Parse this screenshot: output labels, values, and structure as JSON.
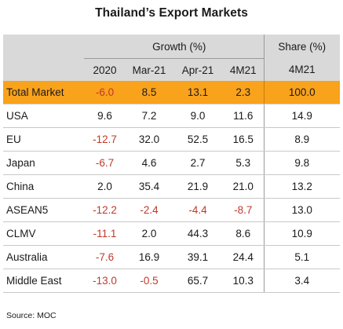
{
  "title": "Thailand’s Export Markets",
  "header": {
    "growth_group": "Growth (%)",
    "share_group": "Share (%)",
    "columns": [
      "2020",
      "Mar-21",
      "Apr-21",
      "4M21"
    ],
    "share_column": "4M21"
  },
  "rows": [
    {
      "label": "Total Market",
      "values": [
        "-6.0",
        "8.5",
        "13.1",
        "2.3"
      ],
      "share": "100.0"
    },
    {
      "label": "USA",
      "values": [
        "9.6",
        "7.2",
        "9.0",
        "11.6"
      ],
      "share": "14.9"
    },
    {
      "label": "EU",
      "values": [
        "-12.7",
        "32.0",
        "52.5",
        "16.5"
      ],
      "share": "8.9"
    },
    {
      "label": "Japan",
      "values": [
        "-6.7",
        "4.6",
        "2.7",
        "5.3"
      ],
      "share": "9.8"
    },
    {
      "label": "China",
      "values": [
        "2.0",
        "35.4",
        "21.9",
        "21.0"
      ],
      "share": "13.2"
    },
    {
      "label": "ASEAN5",
      "values": [
        "-12.2",
        "-2.4",
        "-4.4",
        "-8.7"
      ],
      "share": "13.0"
    },
    {
      "label": "CLMV",
      "values": [
        "-11.1",
        "2.0",
        "44.3",
        "8.6"
      ],
      "share": "10.9"
    },
    {
      "label": "Australia",
      "values": [
        "-7.6",
        "16.9",
        "39.1",
        "24.4"
      ],
      "share": "5.1"
    },
    {
      "label": "Middle East",
      "values": [
        "-13.0",
        "-0.5",
        "65.7",
        "10.3"
      ],
      "share": "3.4"
    }
  ],
  "source": "Source: MOC",
  "colors": {
    "highlight": "#f9a21b",
    "header_bg": "#d9d9d9",
    "negative": "#c0392b"
  }
}
